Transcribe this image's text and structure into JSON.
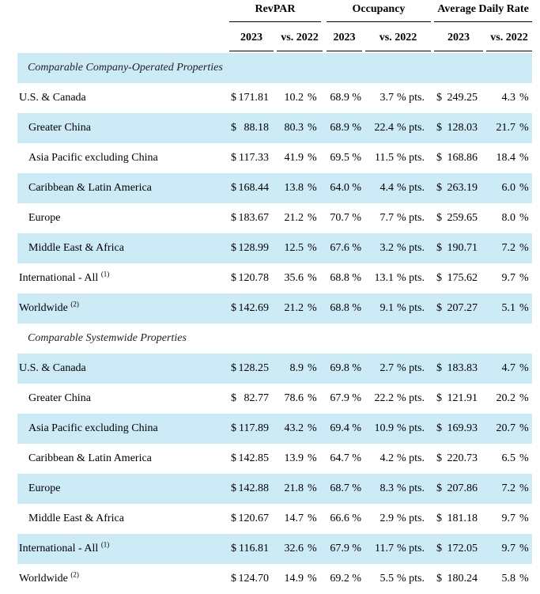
{
  "header": {
    "groups": [
      "RevPAR",
      "Occupancy",
      "Average Daily Rate"
    ],
    "sub": [
      "2023",
      "vs. 2022",
      "2023",
      "vs. 2022",
      "2023",
      "vs. 2022"
    ]
  },
  "sections": [
    {
      "title": "Comparable Company-Operated Properties",
      "rows": [
        {
          "label": "U.S. & Canada",
          "sup": "",
          "rev_dollar": "$",
          "rev": "171.81",
          "rev_chg": "10.2",
          "occ": "68.9 %",
          "occ_chg": "3.7",
          "adr_dollar": "$",
          "adr": "249.25",
          "adr_chg": "4.3"
        },
        {
          "label": "Greater China",
          "sup": "",
          "rev_dollar": "$",
          "rev": "88.18",
          "rev_chg": "80.3",
          "occ": "68.9 %",
          "occ_chg": "22.4",
          "adr_dollar": "$",
          "adr": "128.03",
          "adr_chg": "21.7"
        },
        {
          "label": "Asia Pacific excluding China",
          "sup": "",
          "rev_dollar": "$",
          "rev": "117.33",
          "rev_chg": "41.9",
          "occ": "69.5 %",
          "occ_chg": "11.5",
          "adr_dollar": "$",
          "adr": "168.86",
          "adr_chg": "18.4"
        },
        {
          "label": "Caribbean & Latin America",
          "sup": "",
          "rev_dollar": "$",
          "rev": "168.44",
          "rev_chg": "13.8",
          "occ": "64.0 %",
          "occ_chg": "4.4",
          "adr_dollar": "$",
          "adr": "263.19",
          "adr_chg": "6.0"
        },
        {
          "label": "Europe",
          "sup": "",
          "rev_dollar": "$",
          "rev": "183.67",
          "rev_chg": "21.2",
          "occ": "70.7 %",
          "occ_chg": "7.7",
          "adr_dollar": "$",
          "adr": "259.65",
          "adr_chg": "8.0"
        },
        {
          "label": "Middle East & Africa",
          "sup": "",
          "rev_dollar": "$",
          "rev": "128.99",
          "rev_chg": "12.5",
          "occ": "67.6 %",
          "occ_chg": "3.2",
          "adr_dollar": "$",
          "adr": "190.71",
          "adr_chg": "7.2"
        },
        {
          "label": "International - All",
          "sup": "(1)",
          "rev_dollar": "$",
          "rev": "120.78",
          "rev_chg": "35.6",
          "occ": "68.8 %",
          "occ_chg": "13.1",
          "adr_dollar": "$",
          "adr": "175.62",
          "adr_chg": "9.7"
        },
        {
          "label": "Worldwide",
          "sup": "(2)",
          "rev_dollar": "$",
          "rev": "142.69",
          "rev_chg": "21.2",
          "occ": "68.8 %",
          "occ_chg": "9.1",
          "adr_dollar": "$",
          "adr": "207.27",
          "adr_chg": "5.1"
        }
      ]
    },
    {
      "title": "Comparable Systemwide Properties",
      "rows": [
        {
          "label": "U.S. & Canada",
          "sup": "",
          "rev_dollar": "$",
          "rev": "128.25",
          "rev_chg": "8.9",
          "occ": "69.8 %",
          "occ_chg": "2.7",
          "adr_dollar": "$",
          "adr": "183.83",
          "adr_chg": "4.7"
        },
        {
          "label": "Greater China",
          "sup": "",
          "rev_dollar": "$",
          "rev": "82.77",
          "rev_chg": "78.6",
          "occ": "67.9 %",
          "occ_chg": "22.2",
          "adr_dollar": "$",
          "adr": "121.91",
          "adr_chg": "20.2"
        },
        {
          "label": "Asia Pacific excluding China",
          "sup": "",
          "rev_dollar": "$",
          "rev": "117.89",
          "rev_chg": "43.2",
          "occ": "69.4 %",
          "occ_chg": "10.9",
          "adr_dollar": "$",
          "adr": "169.93",
          "adr_chg": "20.7"
        },
        {
          "label": "Caribbean & Latin America",
          "sup": "",
          "rev_dollar": "$",
          "rev": "142.85",
          "rev_chg": "13.9",
          "occ": "64.7 %",
          "occ_chg": "4.2",
          "adr_dollar": "$",
          "adr": "220.73",
          "adr_chg": "6.5"
        },
        {
          "label": "Europe",
          "sup": "",
          "rev_dollar": "$",
          "rev": "142.88",
          "rev_chg": "21.8",
          "occ": "68.7 %",
          "occ_chg": "8.3",
          "adr_dollar": "$",
          "adr": "207.86",
          "adr_chg": "7.2"
        },
        {
          "label": "Middle East & Africa",
          "sup": "",
          "rev_dollar": "$",
          "rev": "120.67",
          "rev_chg": "14.7",
          "occ": "66.6 %",
          "occ_chg": "2.9",
          "adr_dollar": "$",
          "adr": "181.18",
          "adr_chg": "9.7"
        },
        {
          "label": "International - All",
          "sup": "(1)",
          "rev_dollar": "$",
          "rev": "116.81",
          "rev_chg": "32.6",
          "occ": "67.9 %",
          "occ_chg": "11.7",
          "adr_dollar": "$",
          "adr": "172.05",
          "adr_chg": "9.7"
        },
        {
          "label": "Worldwide",
          "sup": "(2)",
          "rev_dollar": "$",
          "rev": "124.70",
          "rev_chg": "14.9",
          "occ": "69.2 %",
          "occ_chg": "5.5",
          "adr_dollar": "$",
          "adr": "180.24",
          "adr_chg": "5.8"
        }
      ]
    }
  ],
  "units": {
    "pct": "%",
    "pts": "% pts."
  },
  "colors": {
    "band": "#cdeaf7",
    "text": "#000000"
  }
}
